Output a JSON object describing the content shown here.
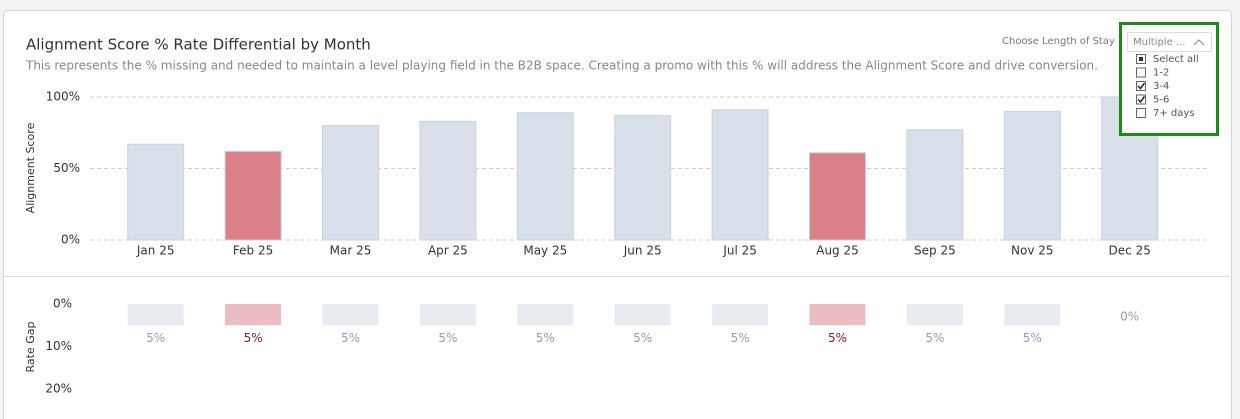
{
  "chart_data": [
    {
      "type": "bar",
      "title": "Alignment Score % Rate Differential by Month",
      "subtitle": "This represents the % missing and needed to maintain a level playing field in the B2B space. Creating a promo with this % will address the Alignment Score and drive conversion.",
      "y_label": "Alignment Score",
      "categories": [
        "Jan 25",
        "Feb 25",
        "Mar 25",
        "Apr 25",
        "May 25",
        "Jun 25",
        "Jul 25",
        "Aug 25",
        "Sep 25",
        "Nov 25",
        "Dec 25"
      ],
      "values": [
        67,
        62,
        80,
        83,
        89,
        87,
        91,
        61,
        77,
        90,
        100
      ],
      "colors": [
        "#d8e0ea",
        "#db8088",
        "#d8e0ea",
        "#d8e0ea",
        "#d8e0ea",
        "#d8e0ea",
        "#d8e0ea",
        "#db8088",
        "#d8e0ea",
        "#d8e0ea",
        "#d8e0ea"
      ],
      "ylim": [
        0,
        100
      ],
      "yticks": [
        {
          "value": 0,
          "label": "0%"
        },
        {
          "value": 50,
          "label": "50%"
        },
        {
          "value": 100,
          "label": "100%"
        }
      ],
      "grid": true
    },
    {
      "type": "bar",
      "y_label": "Rate Gap",
      "categories": [
        "Jan 25",
        "Feb 25",
        "Mar 25",
        "Apr 25",
        "May 25",
        "Jun 25",
        "Jul 25",
        "Aug 25",
        "Sep 25",
        "Nov 25",
        "Dec 25"
      ],
      "values": [
        5,
        5,
        5,
        5,
        5,
        5,
        5,
        5,
        5,
        5,
        0
      ],
      "value_labels": [
        "5%",
        "5%",
        "5%",
        "5%",
        "5%",
        "5%",
        "5%",
        "5%",
        "5%",
        "5%",
        "0%"
      ],
      "colors": [
        "#e8ebf0",
        "#ebbcc1",
        "#e8ebf0",
        "#e8ebf0",
        "#e8ebf0",
        "#e8ebf0",
        "#e8ebf0",
        "#ebbcc1",
        "#e8ebf0",
        "#e8ebf0",
        "#e8ebf0"
      ],
      "label_colors": [
        "#9a9ab8",
        "#8b1a2a",
        "#9a9ab8",
        "#9a9ab8",
        "#9a9ab8",
        "#9a9ab8",
        "#9a9ab8",
        "#8b1a2a",
        "#9a9ab8",
        "#9a9ab8",
        "#9a9ab8"
      ],
      "ylim": [
        0,
        20
      ],
      "y_inverted": true,
      "yticks": [
        {
          "value": 0,
          "label": "0%"
        },
        {
          "value": 10,
          "label": "10%"
        },
        {
          "value": 20,
          "label": "20%"
        }
      ],
      "grid": false
    }
  ],
  "filter": {
    "label": "Choose Length of Stay",
    "button": "Multiple ...",
    "options": [
      {
        "label": "Select all",
        "state": "partial"
      },
      {
        "label": "1-2",
        "state": "unchecked"
      },
      {
        "label": "3-4",
        "state": "checked"
      },
      {
        "label": "5-6",
        "state": "checked"
      },
      {
        "label": "7+ days",
        "state": "unchecked"
      }
    ]
  }
}
